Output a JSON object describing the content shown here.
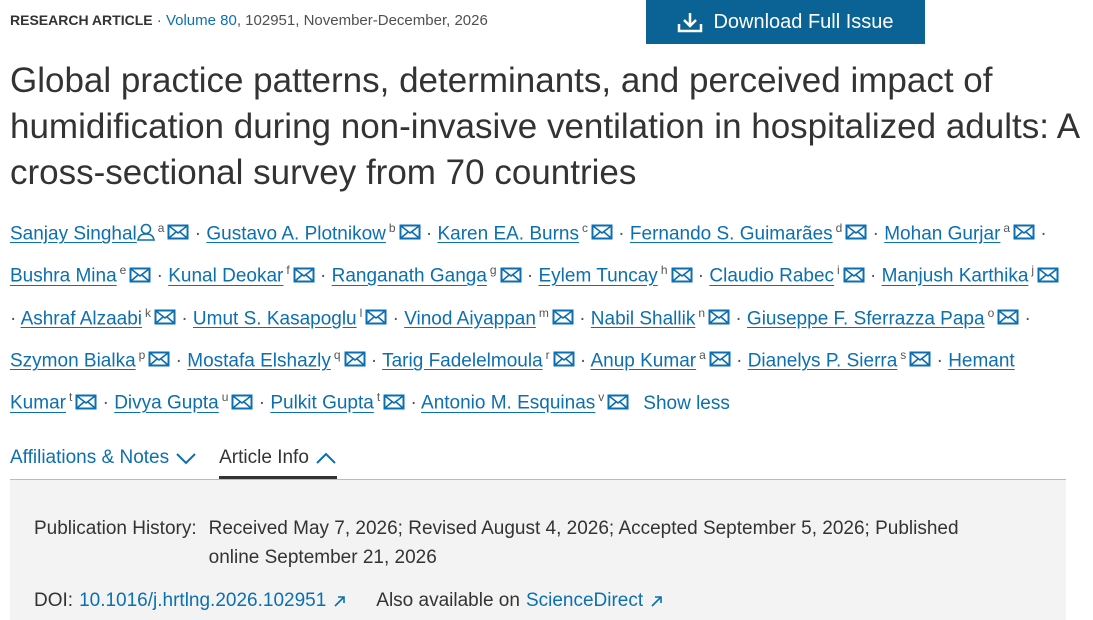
{
  "header": {
    "label": "RESEARCH ARTICLE",
    "separator": "·",
    "volume": "Volume 80",
    "details": ", 102951, November-December, 2026",
    "download": "Download Full Issue"
  },
  "title": "Global practice patterns, determinants, and perceived impact of humidification during non-invasive ventilation in hospitalized adults: A cross-sectional survey from 70 countries",
  "authors": {
    "separator": "·",
    "show_less": "Show less",
    "list": [
      {
        "name": "Sanjay Singhal",
        "aff": "a",
        "corresponding": true
      },
      {
        "name": "Gustavo A. Plotnikow",
        "aff": "b"
      },
      {
        "name": "Karen EA. Burns",
        "aff": "c"
      },
      {
        "name": "Fernando S. Guimarães",
        "aff": "d"
      },
      {
        "name": "Mohan Gurjar",
        "aff": "a"
      },
      {
        "name": "Bushra Mina",
        "aff": "e"
      },
      {
        "name": "Kunal Deokar",
        "aff": "f"
      },
      {
        "name": "Ranganath Ganga",
        "aff": "g"
      },
      {
        "name": "Eylem Tuncay",
        "aff": "h"
      },
      {
        "name": "Claudio Rabec",
        "aff": "i"
      },
      {
        "name": "Manjush Karthika",
        "aff": "j"
      },
      {
        "name": "Ashraf Alzaabi",
        "aff": "k"
      },
      {
        "name": "Umut S. Kasapoglu",
        "aff": "l"
      },
      {
        "name": "Vinod Aiyappan",
        "aff": "m"
      },
      {
        "name": "Nabil Shallik",
        "aff": "n"
      },
      {
        "name": "Giuseppe F. Sferrazza Papa",
        "aff": "o"
      },
      {
        "name": "Szymon Bialka",
        "aff": "p"
      },
      {
        "name": "Mostafa Elshazly",
        "aff": "q"
      },
      {
        "name": "Tarig Fadelelmoula",
        "aff": "r"
      },
      {
        "name": "Anup Kumar",
        "aff": "a"
      },
      {
        "name": "Dianelys P. Sierra",
        "aff": "s"
      },
      {
        "name": "Hemant Kumar",
        "aff": "t"
      },
      {
        "name": "Divya Gupta",
        "aff": "u"
      },
      {
        "name": "Pulkit Gupta",
        "aff": "t"
      },
      {
        "name": "Antonio M. Esquinas",
        "aff": "v"
      }
    ]
  },
  "tabs": [
    "Affiliations & Notes",
    "Article Info"
  ],
  "article_info": {
    "history_label": "Publication History:",
    "history": "Received May 7, 2026; Revised August 4, 2026; Accepted September 5, 2026; Published online September 21, 2026",
    "doi_label": "DOI:",
    "doi": "10.1016/j.hrtlng.2026.102951",
    "also_label": "Also available on",
    "also_link": "ScienceDirect"
  }
}
